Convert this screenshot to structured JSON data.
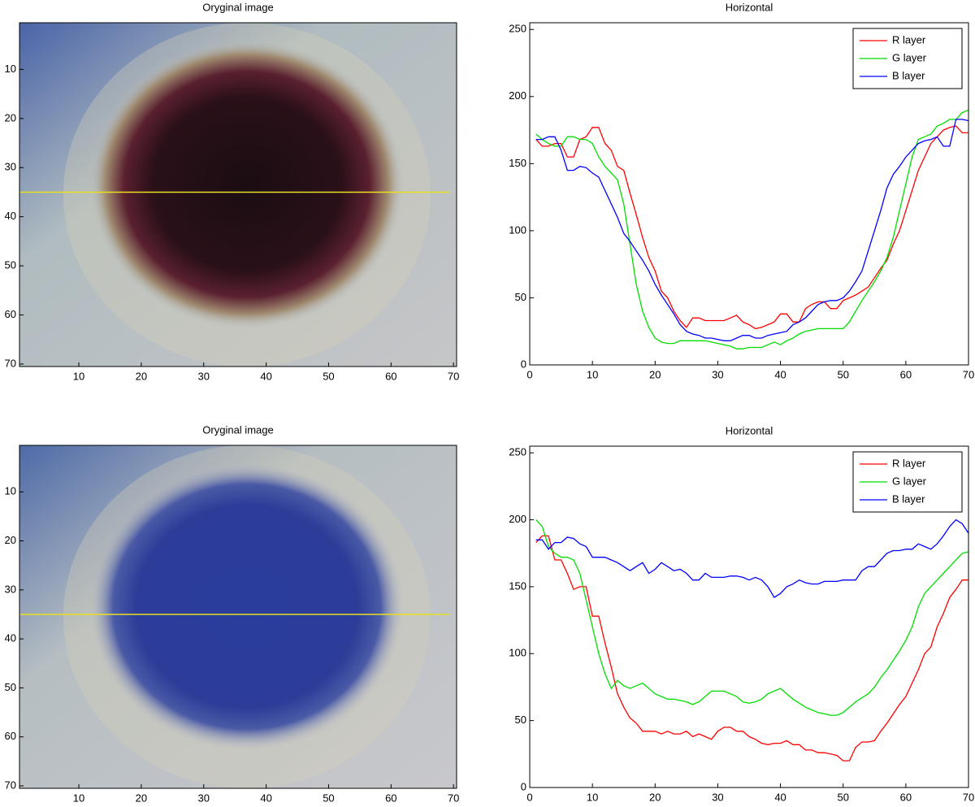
{
  "chart_data": [
    {
      "type": "image",
      "title": "Oryginal image",
      "xlim": [
        0.5,
        70.5
      ],
      "ylim": [
        70.5,
        0.5
      ],
      "xticks": [
        10,
        20,
        30,
        40,
        50,
        60,
        70
      ],
      "yticks": [
        10,
        20,
        30,
        40,
        50,
        60,
        70
      ],
      "hline": 35,
      "hline_color": "#e8e020"
    },
    {
      "type": "line",
      "title": "Horizontal",
      "xlim": [
        0,
        70
      ],
      "ylim": [
        0,
        255
      ],
      "xticks": [
        0,
        10,
        20,
        30,
        40,
        50,
        60,
        70
      ],
      "yticks": [
        0,
        50,
        100,
        150,
        200,
        250
      ],
      "legend": "upper right",
      "x": [
        1,
        2,
        3,
        4,
        5,
        6,
        7,
        8,
        9,
        10,
        11,
        12,
        13,
        14,
        15,
        16,
        17,
        18,
        19,
        20,
        21,
        22,
        23,
        24,
        25,
        26,
        27,
        28,
        29,
        30,
        31,
        32,
        33,
        34,
        35,
        36,
        37,
        38,
        39,
        40,
        41,
        42,
        43,
        44,
        45,
        46,
        47,
        48,
        49,
        50,
        51,
        52,
        53,
        54,
        55,
        56,
        57,
        58,
        59,
        60,
        61,
        62,
        63,
        64,
        65,
        66,
        67,
        68,
        69,
        70
      ],
      "series": [
        {
          "name": "R layer",
          "color": "#ff0000",
          "values": [
            168,
            163,
            163,
            165,
            165,
            155,
            155,
            168,
            170,
            177,
            177,
            165,
            160,
            148,
            145,
            128,
            112,
            95,
            80,
            70,
            55,
            50,
            40,
            33,
            28,
            35,
            35,
            33,
            33,
            33,
            33,
            35,
            37,
            32,
            30,
            27,
            28,
            30,
            32,
            38,
            38,
            32,
            32,
            42,
            45,
            47,
            47,
            42,
            42,
            48,
            50,
            52,
            55,
            58,
            65,
            72,
            78,
            90,
            100,
            115,
            130,
            145,
            155,
            165,
            170,
            175,
            177,
            178,
            173,
            173
          ]
        },
        {
          "name": "G layer",
          "color": "#00dd00",
          "values": [
            172,
            168,
            165,
            163,
            163,
            170,
            170,
            168,
            168,
            165,
            155,
            148,
            143,
            138,
            120,
            90,
            60,
            40,
            28,
            20,
            17,
            16,
            16,
            18,
            18,
            18,
            18,
            18,
            17,
            16,
            15,
            14,
            12,
            12,
            13,
            13,
            13,
            15,
            17,
            15,
            18,
            20,
            23,
            25,
            26,
            27,
            27,
            27,
            27,
            27,
            32,
            40,
            48,
            55,
            62,
            70,
            80,
            95,
            115,
            135,
            155,
            168,
            170,
            172,
            178,
            180,
            183,
            183,
            188,
            190
          ]
        },
        {
          "name": "B layer",
          "color": "#0000ff",
          "values": [
            168,
            168,
            170,
            170,
            160,
            145,
            145,
            148,
            147,
            143,
            140,
            130,
            120,
            110,
            98,
            92,
            85,
            78,
            70,
            60,
            52,
            45,
            38,
            30,
            25,
            23,
            22,
            20,
            20,
            19,
            18,
            18,
            20,
            22,
            22,
            20,
            20,
            22,
            23,
            24,
            25,
            30,
            32,
            35,
            40,
            45,
            47,
            48,
            48,
            50,
            55,
            62,
            70,
            85,
            100,
            115,
            132,
            142,
            148,
            155,
            160,
            165,
            167,
            168,
            170,
            163,
            163,
            183,
            183,
            182
          ]
        }
      ]
    },
    {
      "type": "image",
      "title": "Oryginal image",
      "xlim": [
        0.5,
        70.5
      ],
      "ylim": [
        70.5,
        0.5
      ],
      "xticks": [
        10,
        20,
        30,
        40,
        50,
        60,
        70
      ],
      "yticks": [
        10,
        20,
        30,
        40,
        50,
        60,
        70
      ],
      "hline": 35,
      "hline_color": "#e8e020"
    },
    {
      "type": "line",
      "title": "Horizontal",
      "xlim": [
        0,
        70
      ],
      "ylim": [
        0,
        255
      ],
      "xticks": [
        0,
        10,
        20,
        30,
        40,
        50,
        60,
        70
      ],
      "yticks": [
        0,
        50,
        100,
        150,
        200,
        250
      ],
      "legend": "upper right",
      "x": [
        1,
        2,
        3,
        4,
        5,
        6,
        7,
        8,
        9,
        10,
        11,
        12,
        13,
        14,
        15,
        16,
        17,
        18,
        19,
        20,
        21,
        22,
        23,
        24,
        25,
        26,
        27,
        28,
        29,
        30,
        31,
        32,
        33,
        34,
        35,
        36,
        37,
        38,
        39,
        40,
        41,
        42,
        43,
        44,
        45,
        46,
        47,
        48,
        49,
        50,
        51,
        52,
        53,
        54,
        55,
        56,
        57,
        58,
        59,
        60,
        61,
        62,
        63,
        64,
        65,
        66,
        67,
        68,
        69,
        70
      ],
      "series": [
        {
          "name": "R layer",
          "color": "#ff0000",
          "values": [
            183,
            188,
            188,
            170,
            170,
            160,
            148,
            150,
            150,
            128,
            128,
            108,
            90,
            70,
            60,
            52,
            48,
            42,
            42,
            42,
            40,
            42,
            40,
            40,
            42,
            38,
            40,
            38,
            36,
            42,
            45,
            45,
            42,
            42,
            38,
            36,
            33,
            32,
            33,
            33,
            35,
            32,
            32,
            28,
            28,
            26,
            26,
            25,
            24,
            20,
            20,
            30,
            34,
            34,
            35,
            42,
            48,
            55,
            62,
            68,
            78,
            88,
            100,
            105,
            120,
            130,
            142,
            148,
            155,
            155
          ]
        },
        {
          "name": "G layer",
          "color": "#00dd00",
          "values": [
            200,
            195,
            180,
            175,
            172,
            172,
            170,
            160,
            140,
            120,
            100,
            85,
            74,
            80,
            76,
            74,
            76,
            78,
            74,
            70,
            68,
            66,
            66,
            65,
            64,
            62,
            64,
            68,
            72,
            72,
            72,
            70,
            68,
            64,
            63,
            64,
            66,
            70,
            72,
            74,
            70,
            66,
            63,
            60,
            58,
            56,
            55,
            54,
            54,
            56,
            60,
            64,
            67,
            70,
            75,
            82,
            88,
            95,
            102,
            110,
            120,
            135,
            145,
            150,
            155,
            160,
            165,
            170,
            175,
            176
          ]
        },
        {
          "name": "B layer",
          "color": "#0000ff",
          "values": [
            185,
            185,
            178,
            183,
            183,
            187,
            186,
            182,
            180,
            172,
            172,
            172,
            170,
            168,
            165,
            162,
            165,
            168,
            160,
            163,
            168,
            165,
            162,
            163,
            160,
            155,
            155,
            160,
            157,
            157,
            157,
            158,
            158,
            157,
            155,
            157,
            155,
            150,
            142,
            145,
            150,
            152,
            155,
            153,
            152,
            152,
            154,
            154,
            154,
            155,
            155,
            155,
            162,
            165,
            165,
            170,
            175,
            177,
            177,
            178,
            178,
            182,
            180,
            178,
            182,
            188,
            195,
            200,
            197,
            190
          ]
        }
      ]
    }
  ]
}
